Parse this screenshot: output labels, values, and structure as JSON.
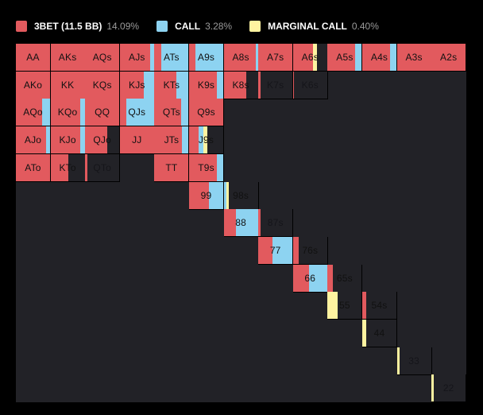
{
  "colors": {
    "raise": "#e25a5e",
    "call": "#8dd3f1",
    "marginal": "#fff3a0",
    "fold": "#222227"
  },
  "legend": [
    {
      "label": "3BET (11.5 BB)",
      "pct": "14.09%",
      "color": "#e25a5e"
    },
    {
      "label": "CALL",
      "pct": "3.28%",
      "color": "#8dd3f1"
    },
    {
      "label": "MARGINAL CALL",
      "pct": "0.40%",
      "color": "#fff3a0"
    }
  ],
  "hands": [
    {
      "hand": "AA",
      "row": 0,
      "col": 0,
      "raise": 1.0,
      "call": 0,
      "marginal": 0
    },
    {
      "hand": "AKs",
      "row": 0,
      "col": 1,
      "raise": 1.0,
      "call": 0,
      "marginal": 0
    },
    {
      "hand": "AQs",
      "row": 0,
      "col": 2,
      "raise": 1.0,
      "call": 0,
      "marginal": 0
    },
    {
      "hand": "AJs",
      "row": 0,
      "col": 3,
      "raise": 0.88,
      "call": 0.12,
      "marginal": 0
    },
    {
      "hand": "ATs",
      "row": 0,
      "col": 4,
      "raise": 0.19,
      "call": 0.81,
      "marginal": 0
    },
    {
      "hand": "A9s",
      "row": 0,
      "col": 5,
      "raise": 0.19,
      "call": 0.81,
      "marginal": 0
    },
    {
      "hand": "A8s",
      "row": 0,
      "col": 6,
      "raise": 0.93,
      "call": 0.07,
      "marginal": 0
    },
    {
      "hand": "A7s",
      "row": 0,
      "col": 7,
      "raise": 1.0,
      "call": 0,
      "marginal": 0
    },
    {
      "hand": "A6s",
      "row": 0,
      "col": 8,
      "raise": 0.58,
      "call": 0,
      "marginal": 0.12
    },
    {
      "hand": "A5s",
      "row": 0,
      "col": 9,
      "raise": 0.81,
      "call": 0.19,
      "marginal": 0
    },
    {
      "hand": "A4s",
      "row": 0,
      "col": 10,
      "raise": 0.81,
      "call": 0.19,
      "marginal": 0
    },
    {
      "hand": "A3s",
      "row": 0,
      "col": 11,
      "raise": 1.0,
      "call": 0,
      "marginal": 0
    },
    {
      "hand": "A2s",
      "row": 0,
      "col": 12,
      "raise": 1.0,
      "call": 0,
      "marginal": 0
    },
    {
      "hand": "AKo",
      "row": 1,
      "col": 0,
      "raise": 1.0,
      "call": 0,
      "marginal": 0
    },
    {
      "hand": "KK",
      "row": 1,
      "col": 1,
      "raise": 1.0,
      "call": 0,
      "marginal": 0
    },
    {
      "hand": "KQs",
      "row": 1,
      "col": 2,
      "raise": 1.0,
      "call": 0,
      "marginal": 0
    },
    {
      "hand": "KJs",
      "row": 1,
      "col": 3,
      "raise": 0.7,
      "call": 0.3,
      "marginal": 0
    },
    {
      "hand": "KTs",
      "row": 1,
      "col": 4,
      "raise": 0.65,
      "call": 0.35,
      "marginal": 0
    },
    {
      "hand": "K9s",
      "row": 1,
      "col": 5,
      "raise": 0.81,
      "call": 0.19,
      "marginal": 0
    },
    {
      "hand": "K8s",
      "row": 1,
      "col": 6,
      "raise": 0.65,
      "call": 0,
      "marginal": 0
    },
    {
      "hand": "K7s",
      "row": 1,
      "col": 7,
      "raise": 0.07,
      "call": 0,
      "marginal": 0
    },
    {
      "hand": "K6s",
      "row": 1,
      "col": 8,
      "raise": 0.02,
      "call": 0,
      "marginal": 0
    },
    {
      "hand": "AQo",
      "row": 2,
      "col": 0,
      "raise": 0.77,
      "call": 0.23,
      "marginal": 0
    },
    {
      "hand": "KQo",
      "row": 2,
      "col": 1,
      "raise": 0.88,
      "call": 0.12,
      "marginal": 0
    },
    {
      "hand": "QQ",
      "row": 2,
      "col": 2,
      "raise": 1.0,
      "call": 0,
      "marginal": 0
    },
    {
      "hand": "QJs",
      "row": 2,
      "col": 3,
      "raise": 0.19,
      "call": 0.81,
      "marginal": 0
    },
    {
      "hand": "QTs",
      "row": 2,
      "col": 4,
      "raise": 0.77,
      "call": 0.23,
      "marginal": 0
    },
    {
      "hand": "Q9s",
      "row": 2,
      "col": 5,
      "raise": 1.0,
      "call": 0,
      "marginal": 0
    },
    {
      "hand": "AJo",
      "row": 3,
      "col": 0,
      "raise": 0.88,
      "call": 0.12,
      "marginal": 0
    },
    {
      "hand": "KJo",
      "row": 3,
      "col": 1,
      "raise": 0.88,
      "call": 0.12,
      "marginal": 0
    },
    {
      "hand": "QJo",
      "row": 3,
      "col": 2,
      "raise": 0.65,
      "call": 0,
      "marginal": 0
    },
    {
      "hand": "JJ",
      "row": 3,
      "col": 3,
      "raise": 1.0,
      "call": 0,
      "marginal": 0
    },
    {
      "hand": "JTs",
      "row": 3,
      "col": 4,
      "raise": 0.81,
      "call": 0.19,
      "marginal": 0
    },
    {
      "hand": "J9s",
      "row": 3,
      "col": 5,
      "raise": 0.29,
      "call": 0.12,
      "marginal": 0.12
    },
    {
      "hand": "ATo",
      "row": 4,
      "col": 0,
      "raise": 1.0,
      "call": 0,
      "marginal": 0
    },
    {
      "hand": "KTo",
      "row": 4,
      "col": 1,
      "raise": 0.53,
      "call": 0,
      "marginal": 0
    },
    {
      "hand": "QTo",
      "row": 4,
      "col": 2,
      "raise": 0.07,
      "call": 0,
      "marginal": 0
    },
    {
      "hand": "TT",
      "row": 4,
      "col": 4,
      "raise": 1.0,
      "call": 0,
      "marginal": 0
    },
    {
      "hand": "T9s",
      "row": 4,
      "col": 5,
      "raise": 0.81,
      "call": 0.19,
      "marginal": 0
    },
    {
      "hand": "99",
      "row": 5,
      "col": 5,
      "raise": 0.58,
      "call": 0.42,
      "marginal": 0
    },
    {
      "hand": "98s",
      "row": 5,
      "col": 6,
      "raise": 0,
      "call": 0.07,
      "marginal": 0.07
    },
    {
      "hand": "88",
      "row": 6,
      "col": 6,
      "raise": 0.35,
      "call": 0.65,
      "marginal": 0
    },
    {
      "hand": "87s",
      "row": 6,
      "col": 7,
      "raise": 0.07,
      "call": 0,
      "marginal": 0
    },
    {
      "hand": "77",
      "row": 7,
      "col": 7,
      "raise": 0.42,
      "call": 0.58,
      "marginal": 0
    },
    {
      "hand": "76s",
      "row": 7,
      "col": 8,
      "raise": 0.16,
      "call": 0,
      "marginal": 0
    },
    {
      "hand": "66",
      "row": 8,
      "col": 8,
      "raise": 0.47,
      "call": 0.53,
      "marginal": 0
    },
    {
      "hand": "65s",
      "row": 8,
      "col": 9,
      "raise": 0.16,
      "call": 0,
      "marginal": 0
    },
    {
      "hand": "55",
      "row": 9,
      "col": 9,
      "raise": 0,
      "call": 0,
      "marginal": 0.3
    },
    {
      "hand": "54s",
      "row": 9,
      "col": 10,
      "raise": 0.12,
      "call": 0,
      "marginal": 0
    },
    {
      "hand": "44",
      "row": 10,
      "col": 10,
      "raise": 0,
      "call": 0,
      "marginal": 0.12
    },
    {
      "hand": "33",
      "row": 11,
      "col": 11,
      "raise": 0,
      "call": 0,
      "marginal": 0.07
    },
    {
      "hand": "22",
      "row": 12,
      "col": 12,
      "raise": 0,
      "call": 0,
      "marginal": 0.07
    }
  ]
}
